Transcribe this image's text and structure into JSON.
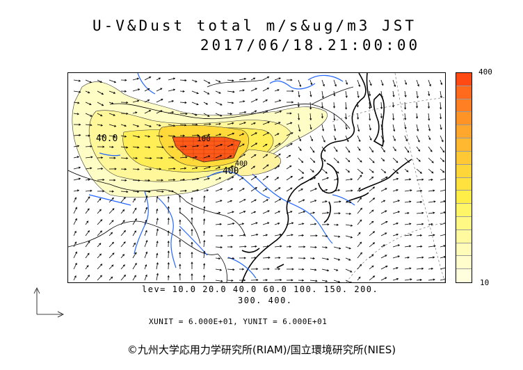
{
  "title_line1": "U-V&Dust total m/s&ug/m3 JST",
  "title_line2": "2017/06/18.21:00:00",
  "colorbar": {
    "max_label": "400",
    "min_label": "10",
    "colors": [
      "#ff4a14",
      "#ff6a1c",
      "#ff7f22",
      "#ff9326",
      "#ffa62c",
      "#ffb830",
      "#ffc834",
      "#ffd63a",
      "#ffe23e",
      "#ffee48",
      "#fff566",
      "#fff884",
      "#fffaa0",
      "#fffbb8",
      "#fffdcc",
      "#fffedd"
    ]
  },
  "levels_line1": "lev= 10.0 20.0 40.0 60.0 100. 150. 200.",
  "levels_line2": "300. 400.",
  "units": "XUNIT = 6.000E+01, YUNIT = 6.000E+01",
  "contour_labels": [
    "40.0",
    "100",
    "400",
    "400"
  ],
  "copyright": "©九州大学応用力学研究所(RIAM)/国立環境研究所(NIES)"
}
